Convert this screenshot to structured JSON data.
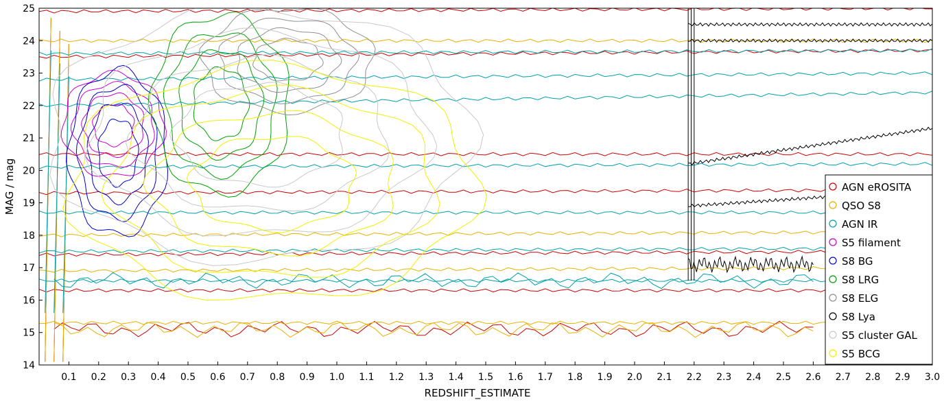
{
  "chart_data": {
    "type": "contour",
    "xlabel": "REDSHIFT_ESTIMATE",
    "ylabel": "MAG / mag",
    "xlim": [
      0.0,
      3.0
    ],
    "ylim": [
      14,
      25
    ],
    "x_ticks": [
      "0.1",
      "0.2",
      "0.3",
      "0.4",
      "0.5",
      "0.6",
      "0.7",
      "0.8",
      "0.9",
      "1.0",
      "1.1",
      "1.2",
      "1.3",
      "1.4",
      "1.5",
      "1.6",
      "1.7",
      "1.8",
      "1.9",
      "2.0",
      "2.1",
      "2.2",
      "2.3",
      "2.4",
      "2.5",
      "2.6",
      "2.7",
      "2.8",
      "2.9",
      "3.0"
    ],
    "y_ticks": [
      "14",
      "15",
      "16",
      "17",
      "18",
      "19",
      "20",
      "21",
      "22",
      "23",
      "24",
      "25"
    ],
    "grid": false,
    "legend_position": "bottom-right",
    "series": [
      {
        "name": "AGN eROSITA",
        "color": "#cc0000",
        "x_range": [
          0.0,
          3.0
        ],
        "y_range": [
          14.0,
          25.0
        ],
        "levels": [
          {
            "mag": 24.9,
            "rise": 0.1
          },
          {
            "mag": 23.5,
            "rise": 0.2
          },
          {
            "mag": 20.5,
            "rise": 0.0
          },
          {
            "mag": 19.3,
            "rise": 0.1
          },
          {
            "mag": 17.4,
            "rise": 0.1
          },
          {
            "mag": 16.3,
            "rise": 0.0
          }
        ]
      },
      {
        "name": "QSO S8",
        "color": "#e8b000",
        "x_range": [
          0.0,
          3.0
        ],
        "y_range": [
          14.0,
          25.0
        ],
        "levels": [
          {
            "mag": 24.0,
            "rise": 0.0
          },
          {
            "mag": 18.0,
            "rise": 0.1
          },
          {
            "mag": 16.9,
            "rise": 0.1
          },
          {
            "mag": 15.3,
            "rise": 0.0
          }
        ]
      },
      {
        "name": "AGN IR",
        "color": "#00a0a8",
        "x_range": [
          0.0,
          3.0
        ],
        "y_range": [
          15.5,
          24.0
        ],
        "levels": [
          {
            "mag": 23.6,
            "rise": 0.1
          },
          {
            "mag": 22.8,
            "rise": 0.2
          },
          {
            "mag": 22.0,
            "rise": 0.4
          },
          {
            "mag": 20.1,
            "rise": 0.1
          },
          {
            "mag": 18.7,
            "rise": 0.0
          },
          {
            "mag": 17.5,
            "rise": 0.1
          },
          {
            "mag": 16.6,
            "rise": 0.0
          }
        ]
      },
      {
        "name": "S5 filament",
        "color": "#cc00cc",
        "x_range": [
          0.08,
          0.42
        ],
        "y_range": [
          19.8,
          23.0
        ]
      },
      {
        "name": "S8 BG",
        "color": "#0000cc",
        "x_range": [
          0.1,
          0.43
        ],
        "y_range": [
          18.0,
          23.1
        ]
      },
      {
        "name": "S8 LRG",
        "color": "#00a000",
        "x_range": [
          0.38,
          0.84
        ],
        "y_range": [
          19.3,
          24.8
        ]
      },
      {
        "name": "S8 ELG",
        "color": "#909090",
        "x_range": [
          0.55,
          1.12
        ],
        "y_range": [
          21.8,
          25.0
        ]
      },
      {
        "name": "S8 Lya",
        "color": "#000000",
        "x_range": [
          2.18,
          3.0
        ],
        "y_range": [
          16.0,
          25.0
        ],
        "levels": [
          {
            "mag": 24.5,
            "rise": 0.0
          },
          {
            "mag": 24.0,
            "rise": 0.0
          },
          {
            "mag": 20.2,
            "rise": 1.1
          },
          {
            "mag": 18.9,
            "rise": 0.5
          }
        ]
      },
      {
        "name": "S5 cluster GAL",
        "color": "#c8c8c8",
        "x_range": [
          0.03,
          1.45
        ],
        "y_range": [
          17.2,
          25.0
        ]
      },
      {
        "name": "S5 BCG",
        "color": "#f0f000",
        "x_range": [
          0.1,
          1.47
        ],
        "y_range": [
          16.0,
          23.2
        ]
      }
    ]
  }
}
